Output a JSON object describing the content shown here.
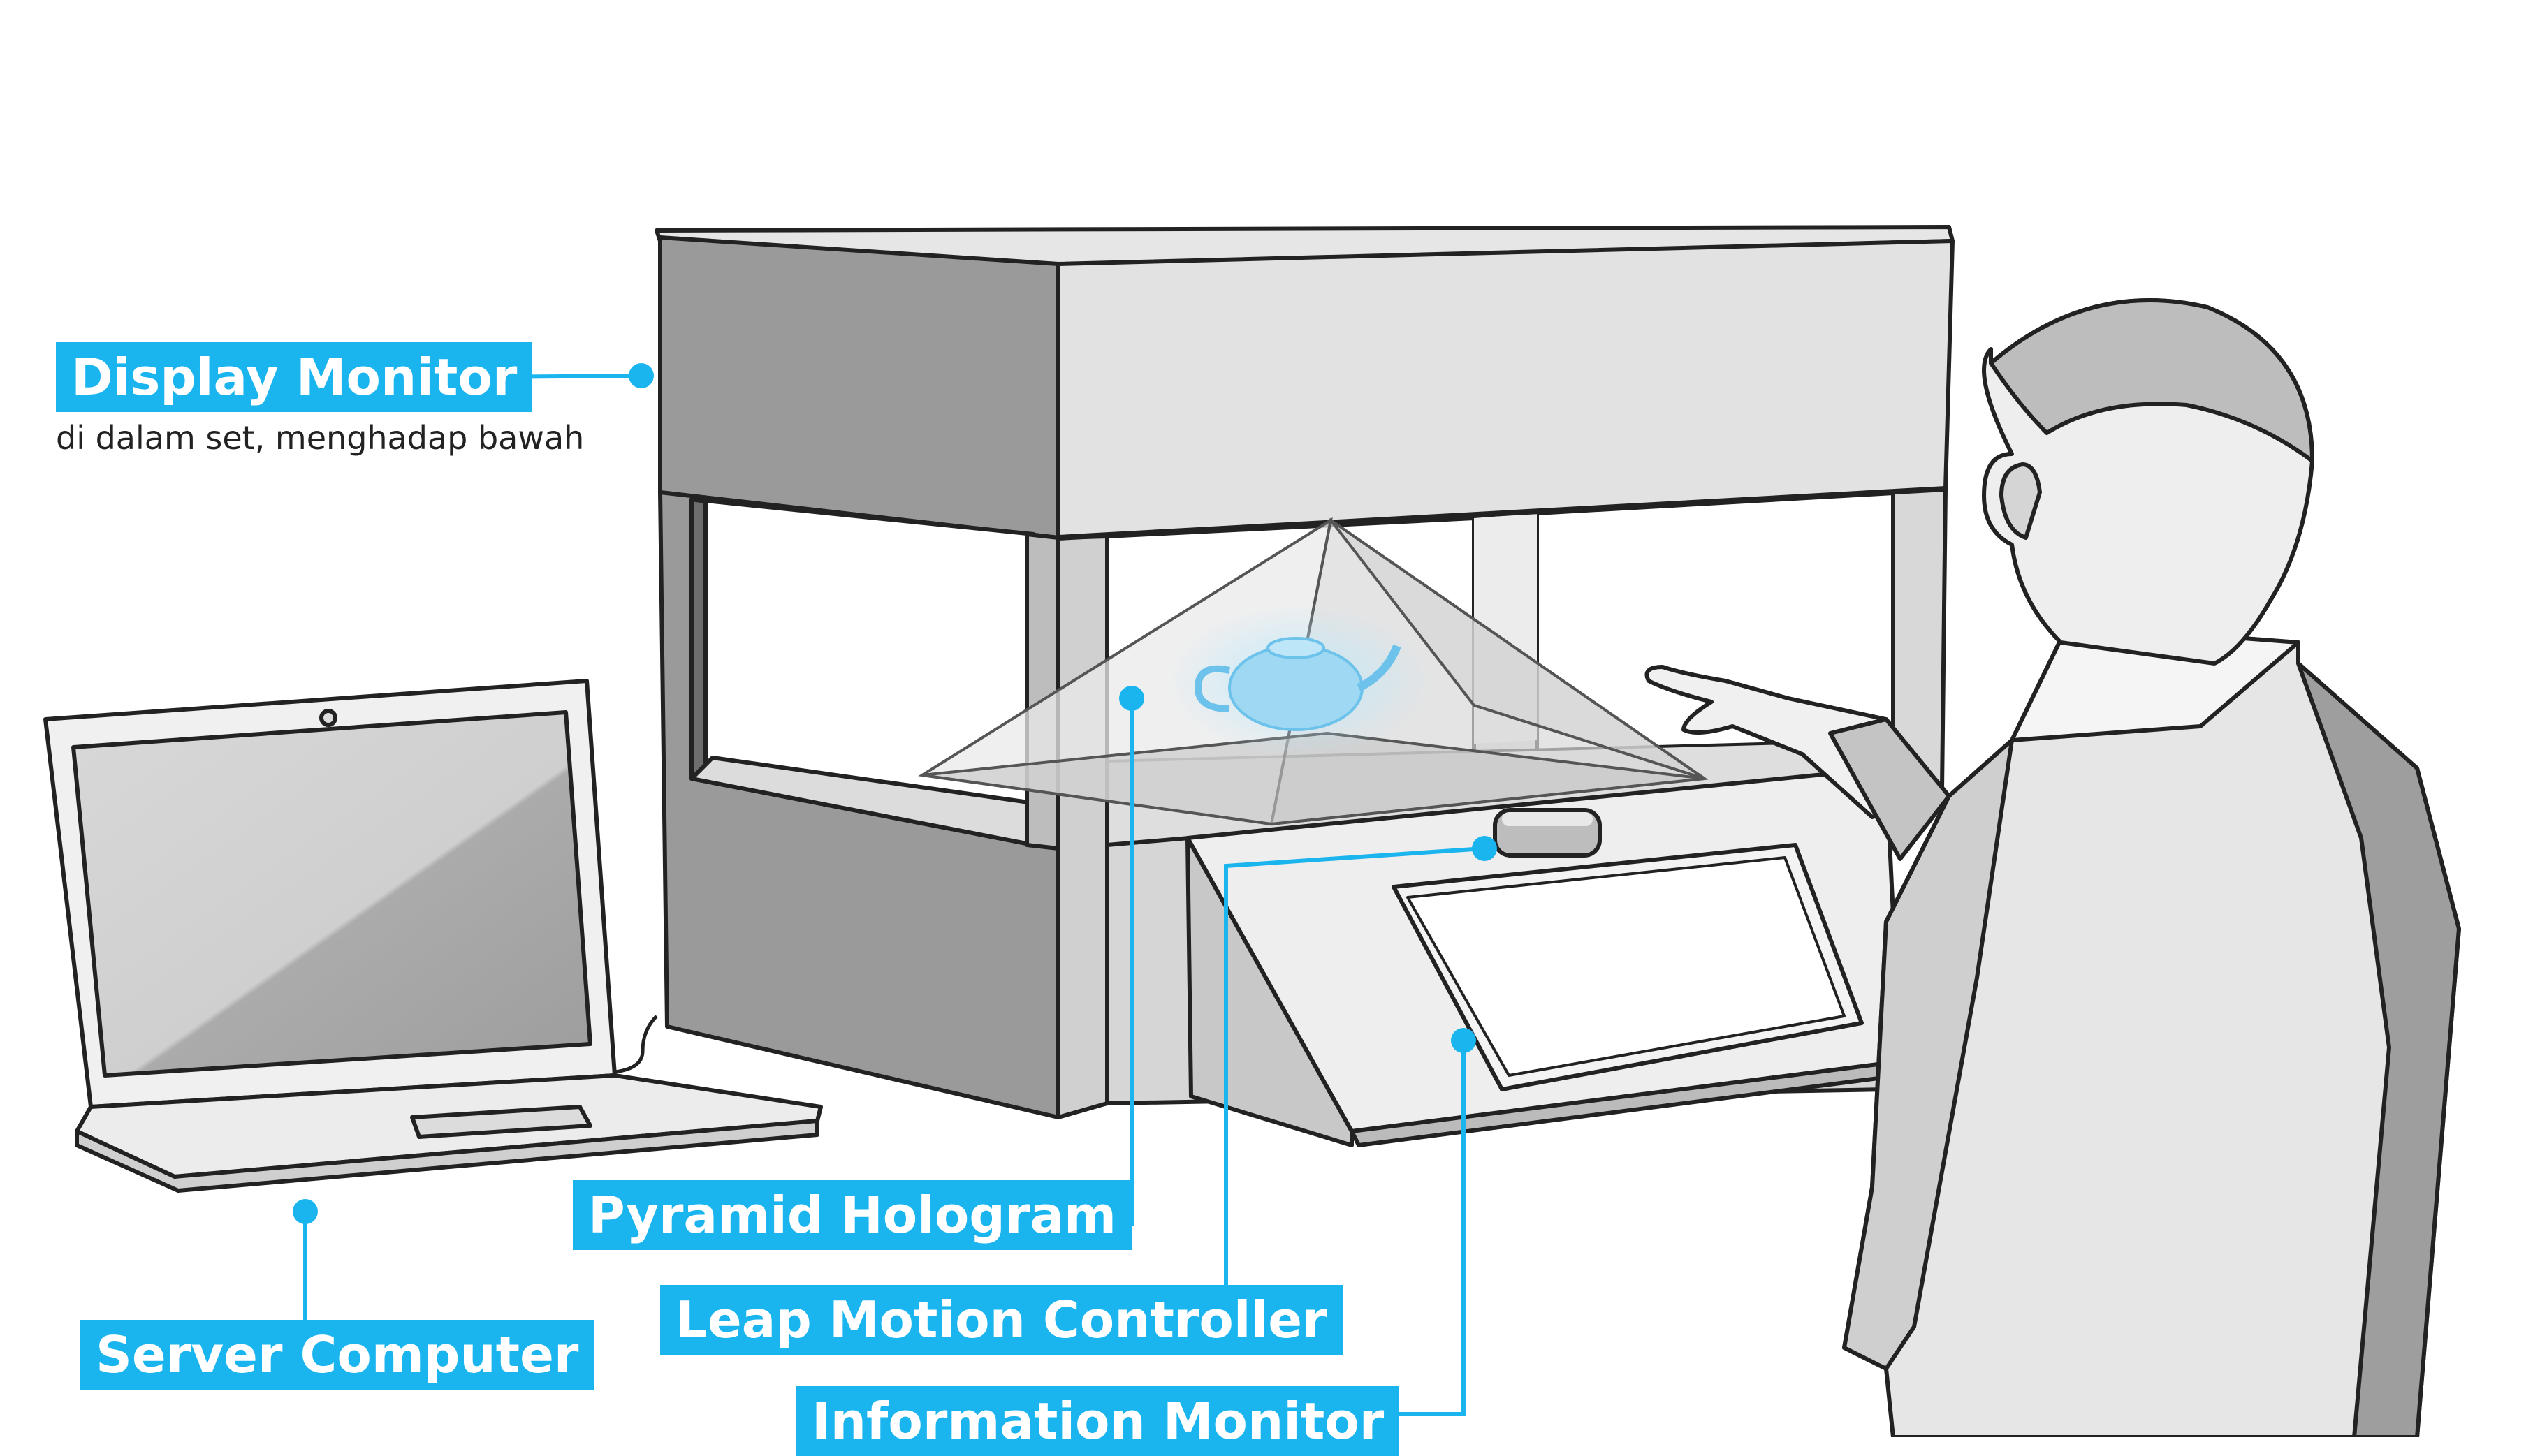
{
  "labels": {
    "display_monitor": "Display Monitor",
    "display_monitor_note": "di dalam set, menghadap bawah",
    "pyramid_hologram": "Pyramid Hologram",
    "server_computer": "Server Computer",
    "leap_motion": "Leap Motion Controller",
    "information_monitor": "Information Monitor"
  },
  "colors": {
    "accent": "#1ab4ee",
    "hologram": "#9fd8f2",
    "outline": "#222222"
  },
  "icons": {
    "laptop": "laptop-illustration",
    "cabinet": "hologram-cabinet",
    "person": "person-illustration",
    "teapot": "teapot-hologram"
  }
}
